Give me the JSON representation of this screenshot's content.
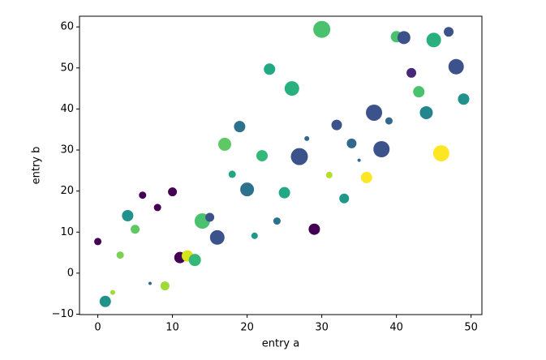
{
  "chart_data": {
    "type": "scatter",
    "xlabel": "entry a",
    "ylabel": "entry b",
    "x": [
      0,
      1,
      2,
      3,
      4,
      5,
      6,
      7,
      8,
      9,
      10,
      11,
      12,
      13,
      14,
      15,
      16,
      17,
      18,
      19,
      20,
      21,
      22,
      23,
      24,
      25,
      26,
      27,
      28,
      29,
      30,
      31,
      32,
      33,
      34,
      35,
      36,
      37,
      38,
      39,
      40,
      41,
      42,
      43,
      44,
      45,
      46,
      47,
      48,
      49
    ],
    "y": [
      7.7,
      -6.9,
      -4.7,
      4.4,
      14.0,
      10.7,
      19.0,
      -2.5,
      16.0,
      -3.1,
      19.8,
      3.8,
      4.2,
      3.2,
      12.7,
      13.6,
      8.7,
      31.4,
      24.1,
      35.7,
      20.4,
      9.1,
      28.6,
      49.7,
      12.7,
      19.6,
      45.0,
      28.4,
      32.8,
      10.7,
      59.4,
      23.9,
      36.1,
      18.2,
      31.6,
      27.5,
      23.3,
      39.1,
      30.2,
      37.1,
      57.6,
      57.4,
      48.8,
      44.2,
      39.1,
      56.8,
      29.2,
      58.8,
      50.3,
      42.4
    ],
    "sizes": [
      4.5,
      7,
      3,
      4.5,
      7,
      5.5,
      4.5,
      2,
      4.5,
      5.5,
      5.5,
      7,
      7,
      7.5,
      9.5,
      5.5,
      9,
      8,
      4.5,
      7,
      8.5,
      4,
      7,
      7,
      4.5,
      7,
      9,
      10.5,
      3,
      7,
      10.5,
      4,
      6.5,
      6,
      6,
      2,
      7,
      10,
      10,
      4.5,
      7,
      8,
      6,
      7,
      8,
      9,
      10,
      6,
      9.5,
      7
    ],
    "colors": [
      "#440154",
      "#21918c",
      "#a0da39",
      "#7ad151",
      "#21918c",
      "#5ec962",
      "#440154",
      "#31688e",
      "#440154",
      "#a0da39",
      "#440154",
      "#440154",
      "#d8e219",
      "#35b779",
      "#4ac16d",
      "#3b528b",
      "#3b528b",
      "#5ec962",
      "#21a685",
      "#2c728e",
      "#2c728e",
      "#1f988b",
      "#35b779",
      "#22a884",
      "#2c728e",
      "#22a884",
      "#2ab07f",
      "#3b528b",
      "#31688e",
      "#440154",
      "#4ac16d",
      "#b5de2b",
      "#3b528b",
      "#1f988b",
      "#31688e",
      "#31688e",
      "#fde725",
      "#3b528b",
      "#3b528b",
      "#31688e",
      "#4ac16d",
      "#3b528b",
      "#482878",
      "#4ac16d",
      "#25858e",
      "#2ab07f",
      "#fde725",
      "#3b528b",
      "#3b528b",
      "#21918c"
    ],
    "xlim": [
      -2.45,
      51.45
    ],
    "ylim": [
      -10.1,
      62.6
    ],
    "xticks": [
      0,
      10,
      20,
      30,
      40,
      50
    ],
    "yticks": [
      {
        "value": -10,
        "label": "−10"
      },
      0,
      10,
      20,
      30,
      40,
      50,
      60
    ]
  }
}
